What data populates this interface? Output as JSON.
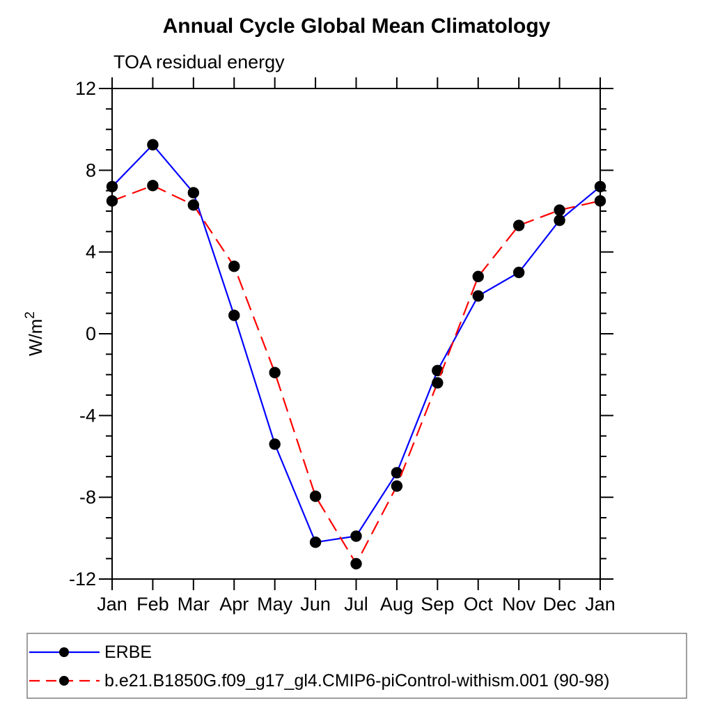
{
  "chart_data": {
    "type": "line",
    "title": "Annual Cycle Global Mean Climatology",
    "subtitle": "TOA residual energy",
    "ylabel_base": "W/m",
    "ylabel_sup": "2",
    "categories": [
      "Jan",
      "Feb",
      "Mar",
      "Apr",
      "May",
      "Jun",
      "Jul",
      "Aug",
      "Sep",
      "Oct",
      "Nov",
      "Dec",
      "Jan"
    ],
    "ylim": [
      -12,
      12
    ],
    "y_major_tick_step": 4,
    "y_minor_tick_step": 1,
    "y_major_tick_labels": [
      "12",
      "8",
      "4",
      "0",
      "-4",
      "-8",
      "-12"
    ],
    "grid": "off",
    "legend_position": "bottom-box",
    "series": [
      {
        "name": "ERBE",
        "color": "#0000ff",
        "line_style": "solid",
        "marker": "filled-circle",
        "marker_color": "#000000",
        "values": [
          7.2,
          9.25,
          6.9,
          0.9,
          -5.4,
          -10.2,
          -9.9,
          -6.8,
          -1.8,
          1.85,
          3.0,
          5.55,
          7.2
        ]
      },
      {
        "name": "b.e21.B1850G.f09_g17_gl4.CMIP6-piControl-withism.001 (90-98)",
        "color": "#ff0000",
        "line_style": "dashed",
        "marker": "filled-circle",
        "marker_color": "#000000",
        "values": [
          6.5,
          7.25,
          6.3,
          3.3,
          -1.9,
          -7.95,
          -11.25,
          -7.45,
          -2.4,
          2.8,
          5.3,
          6.05,
          6.5
        ]
      }
    ]
  }
}
